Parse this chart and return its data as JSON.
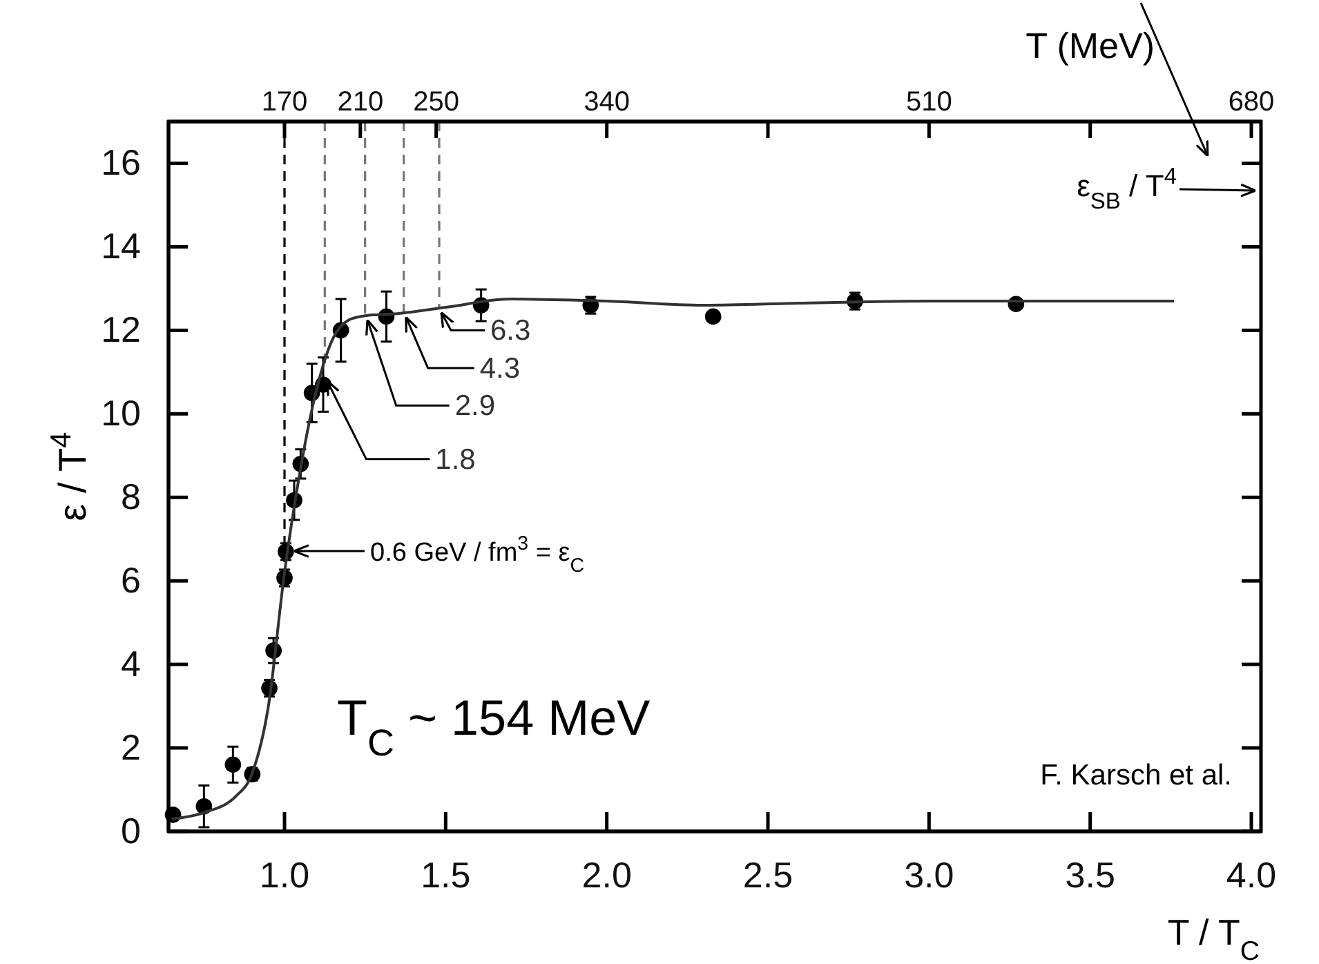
{
  "chart_data": {
    "type": "scatter",
    "xlabel": "T / T$_{C}$",
    "ylabel": "ε / T$^{4}$",
    "x2label": "T (MeV)",
    "xlim": [
      0.64,
      4.03
    ],
    "ylim": [
      0,
      17
    ],
    "x2lim": [
      108.8,
      685.1
    ],
    "xticks": [
      {
        "value": 1,
        "label": "1.0"
      },
      {
        "value": 1.5,
        "label": "1.5"
      },
      {
        "value": 2,
        "label": "2.0"
      },
      {
        "value": 2.5,
        "label": "2.5"
      },
      {
        "value": 3,
        "label": "3.0"
      },
      {
        "value": 3.5,
        "label": "3.5"
      },
      {
        "value": 4,
        "label": "4.0"
      }
    ],
    "yticks": [
      0,
      2,
      4,
      6,
      8,
      10,
      12,
      14,
      16
    ],
    "x2ticks": [
      170,
      210,
      250,
      340,
      {
        "value": 425,
        "label": null
      },
      510,
      {
        "value": 595,
        "label": null
      },
      680
    ],
    "marker": "circle",
    "series": [
      {
        "color": "#000000",
        "x": [
          0.654,
          0.75,
          0.84,
          0.9,
          0.953,
          0.966,
          1.0,
          1.004,
          1.03,
          1.05,
          1.085,
          1.12,
          1.175,
          1.316,
          1.61,
          1.95,
          2.33,
          2.77,
          3.27
        ],
        "values": [
          0.4,
          0.6,
          1.6,
          1.37,
          3.43,
          4.33,
          6.07,
          6.7,
          7.93,
          8.8,
          10.5,
          10.7,
          12.0,
          12.33,
          12.6,
          12.6,
          12.33,
          12.7,
          12.63
        ],
        "errors": [
          null,
          0.5,
          0.43,
          0.15,
          0.2,
          0.3,
          0.2,
          0.2,
          0.47,
          0.35,
          0.7,
          0.65,
          0.75,
          0.6,
          0.38,
          0.2,
          null,
          0.2,
          null
        ]
      },
      {
        "type": "line",
        "color": "#333333",
        "marker": "none",
        "line_style": "solid",
        "x": [
          0.65,
          0.75,
          0.85,
          0.9,
          0.95,
          1.0,
          1.05,
          1.1,
          1.15,
          1.2,
          1.25,
          1.35,
          1.5,
          1.7,
          2.0,
          2.3,
          2.6,
          3.0,
          3.76
        ],
        "values": [
          0.3,
          0.45,
          0.85,
          1.4,
          3.0,
          6.2,
          8.7,
          10.6,
          11.8,
          12.25,
          12.35,
          12.4,
          12.55,
          12.75,
          12.7,
          12.6,
          12.65,
          12.7,
          12.7
        ]
      }
    ],
    "ref_lines": [
      {
        "axis": "x",
        "value": 1.0,
        "color": "#000000",
        "line_style": "dashed"
      },
      {
        "axis": "x",
        "value": 1.125,
        "color": "#777777",
        "line_style": "dashed"
      },
      {
        "axis": "x",
        "value": 1.25,
        "color": "#777777",
        "line_style": "dashed"
      },
      {
        "axis": "x",
        "value": 1.37,
        "color": "#777777",
        "line_style": "dashed"
      },
      {
        "axis": "x",
        "value": 1.48,
        "color": "#777777",
        "line_style": "dashed"
      }
    ],
    "annotations": [
      "0.6 GeV / fm$^{3}$ = ε$_{C}$",
      {
        "text": "1.8",
        "x": 1.125,
        "y": 10.9
      },
      {
        "text": "2.9",
        "x": 1.25,
        "y": 12.35
      },
      {
        "text": "4.3",
        "x": 1.37,
        "y": 12.42
      },
      {
        "text": "6.3",
        "x": 1.48,
        "y": 12.53
      },
      "ε$_{SB}$ / T$^{4}$",
      "T$_{C}$ ~ 154 MeV",
      "F. Karsch et al."
    ]
  }
}
